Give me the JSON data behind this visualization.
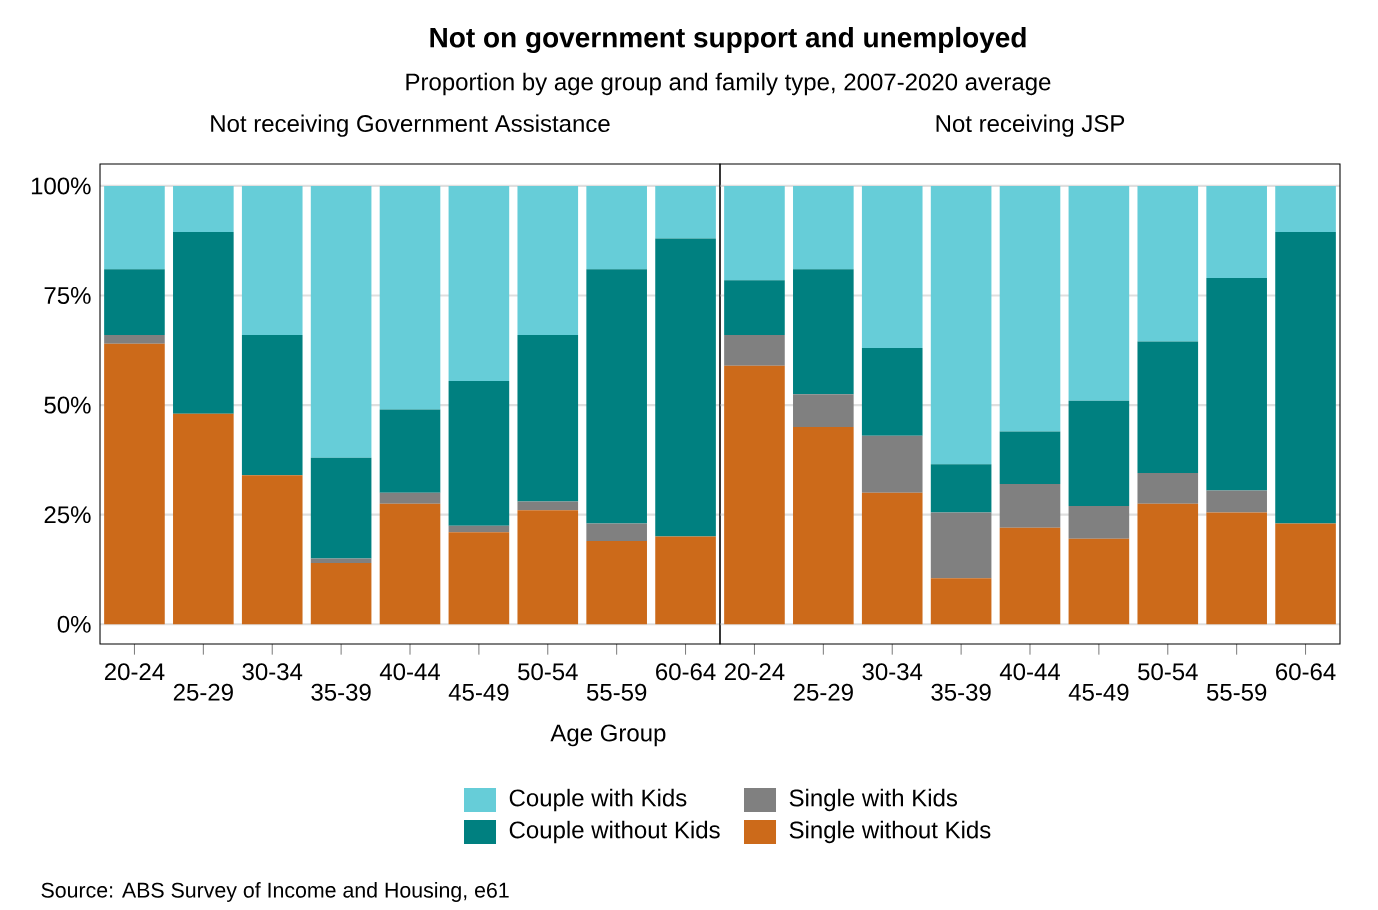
{
  "chart_data": [
    {
      "type": "bar",
      "stacked": true,
      "title": "Not receiving Government Assistance",
      "xlabel": "Age Group",
      "annotations": [
        "**Not on government support and unemployed**",
        "Proportion by age group and family type, 2007-2020 average",
        "Source: ABS Survey of Income and Housing, e61"
      ],
      "categories": [
        "20-24",
        "25-29",
        "30-34",
        "35-39",
        "40-44",
        "45-49",
        "50-54",
        "55-59",
        "60-64"
      ],
      "series": [
        {
          "name": "Single without Kids",
          "color": "#cc6a1a",
          "values": [
            64,
            48,
            34,
            14,
            27.5,
            21,
            26,
            19,
            20
          ]
        },
        {
          "name": "Single with Kids",
          "color": "#808080",
          "values": [
            2,
            0,
            0,
            1,
            2.5,
            1.5,
            2,
            4,
            0
          ]
        },
        {
          "name": "Couple without Kids",
          "color": "#008080",
          "values": [
            15,
            41.5,
            32,
            23,
            19,
            33,
            38,
            58,
            68
          ]
        },
        {
          "name": "Couple with Kids",
          "color": "#66cdd8",
          "values": [
            19,
            10.5,
            34,
            62,
            51,
            44.5,
            34,
            19,
            12
          ]
        }
      ],
      "ylim": [
        -4.5,
        105
      ],
      "yticks": [
        {
          "value": 0,
          "label": "0%"
        },
        {
          "value": 25,
          "label": "25%"
        },
        {
          "value": 50,
          "label": "50%"
        },
        {
          "value": 75,
          "label": "75%"
        },
        {
          "value": 100,
          "label": "100%"
        }
      ],
      "grid": "y",
      "legend": "bottom"
    },
    {
      "type": "bar",
      "stacked": true,
      "title": "Not receiving JSP",
      "categories": [
        "20-24",
        "25-29",
        "30-34",
        "35-39",
        "40-44",
        "45-49",
        "50-54",
        "55-59",
        "60-64"
      ],
      "series": [
        {
          "color": "#cc6a1a",
          "values": [
            59,
            45,
            30,
            10.5,
            22,
            19.5,
            27.5,
            25.5,
            23
          ]
        },
        {
          "color": "#808080",
          "values": [
            7,
            7.5,
            13,
            15,
            10,
            7.5,
            7,
            5,
            0
          ]
        },
        {
          "color": "#008080",
          "values": [
            12.5,
            28.5,
            20,
            11,
            12,
            24,
            30,
            48.5,
            66.5
          ]
        },
        {
          "color": "#66cdd8",
          "values": [
            21.5,
            19,
            37,
            63.5,
            56,
            49,
            35.5,
            21,
            10.5
          ]
        }
      ],
      "ylim": [
        -4.5,
        105
      ],
      "yticks": [
        {
          "value": 0,
          "label": null
        },
        {
          "value": 25,
          "label": null
        },
        {
          "value": 50,
          "label": null
        },
        {
          "value": 75,
          "label": null
        },
        {
          "value": 100,
          "label": null
        }
      ],
      "grid": "y",
      "tick_labels": "x"
    }
  ]
}
